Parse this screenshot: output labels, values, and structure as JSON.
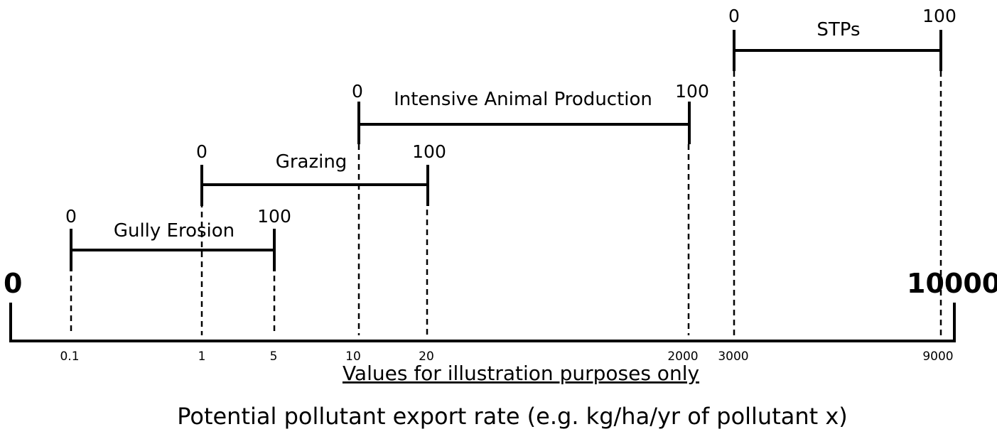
{
  "axis": {
    "min_label": "0",
    "max_label": "10000",
    "ticks": [
      "0.1",
      "1",
      "5",
      "10",
      "20",
      "2000",
      "3000",
      "9000"
    ]
  },
  "ranges": [
    {
      "name": "Gully Erosion",
      "from": "0.1",
      "to": "5",
      "start_label": "0",
      "end_label": "100"
    },
    {
      "name": "Grazing",
      "from": "1",
      "to": "20",
      "start_label": "0",
      "end_label": "100"
    },
    {
      "name": "Intensive Animal Production",
      "from": "10",
      "to": "2000",
      "start_label": "0",
      "end_label": "100"
    },
    {
      "name": "STPs",
      "from": "3000",
      "to": "9000",
      "start_label": "0",
      "end_label": "100"
    }
  ],
  "note": "Values for illustration purposes only",
  "axis_title": "Potential pollutant export rate (e.g. kg/ha/yr of pollutant x)"
}
